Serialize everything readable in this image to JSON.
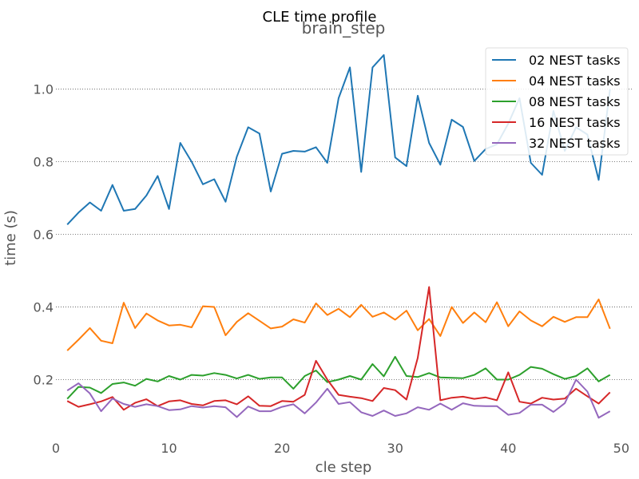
{
  "chart_data": {
    "type": "line",
    "suptitle": "CLE time profile",
    "title": "brain_step",
    "xlabel": "cle step",
    "ylabel": "time (s)",
    "xlim": [
      0,
      51
    ],
    "ylim": [
      0.045,
      1.14
    ],
    "xticks": [
      0,
      10,
      20,
      30,
      40,
      50
    ],
    "yticks": [
      0.2,
      0.4,
      0.6,
      0.8,
      1.0
    ],
    "xtick_labels": [
      "0",
      "10",
      "20",
      "30",
      "40",
      "50"
    ],
    "ytick_labels": [
      "0.2",
      "0.4",
      "0.6",
      "0.8",
      "1.0"
    ],
    "grid": "horizontal dotted",
    "legend_position": "top-right",
    "x": [
      1,
      2,
      3,
      4,
      5,
      6,
      7,
      8,
      9,
      10,
      11,
      12,
      13,
      14,
      15,
      16,
      17,
      18,
      19,
      20,
      21,
      22,
      23,
      24,
      25,
      26,
      27,
      28,
      29,
      30,
      31,
      32,
      33,
      34,
      35,
      36,
      37,
      38,
      39,
      40,
      41,
      42,
      43,
      44,
      45,
      46,
      47,
      48,
      49
    ],
    "series": [
      {
        "name": "02 NEST tasks",
        "color": "#1f77b4",
        "values": [
          0.627,
          0.66,
          0.688,
          0.665,
          0.736,
          0.665,
          0.67,
          0.707,
          0.761,
          0.67,
          0.852,
          0.8,
          0.738,
          0.752,
          0.69,
          0.814,
          0.895,
          0.878,
          0.718,
          0.822,
          0.83,
          0.828,
          0.84,
          0.797,
          0.975,
          1.06,
          0.772,
          1.06,
          1.094,
          0.812,
          0.788,
          0.982,
          0.852,
          0.792,
          0.916,
          0.896,
          0.802,
          0.835,
          0.848,
          0.905,
          0.975,
          0.797,
          0.764,
          0.94,
          0.83,
          0.895,
          0.875,
          0.75,
          1.0
        ]
      },
      {
        "name": "04 NEST tasks",
        "color": "#ff7f0e",
        "values": [
          0.28,
          0.31,
          0.342,
          0.307,
          0.3,
          0.412,
          0.342,
          0.382,
          0.363,
          0.349,
          0.351,
          0.344,
          0.402,
          0.4,
          0.322,
          0.359,
          0.383,
          0.362,
          0.341,
          0.346,
          0.366,
          0.357,
          0.41,
          0.378,
          0.395,
          0.372,
          0.406,
          0.373,
          0.385,
          0.365,
          0.39,
          0.336,
          0.367,
          0.32,
          0.4,
          0.356,
          0.385,
          0.358,
          0.413,
          0.347,
          0.388,
          0.363,
          0.347,
          0.373,
          0.359,
          0.372,
          0.372,
          0.421,
          0.34
        ]
      },
      {
        "name": "08 NEST tasks",
        "color": "#2ca02c",
        "values": [
          0.147,
          0.18,
          0.178,
          0.163,
          0.188,
          0.192,
          0.183,
          0.202,
          0.195,
          0.21,
          0.2,
          0.213,
          0.211,
          0.218,
          0.213,
          0.203,
          0.213,
          0.202,
          0.206,
          0.206,
          0.175,
          0.21,
          0.225,
          0.193,
          0.2,
          0.21,
          0.2,
          0.243,
          0.209,
          0.263,
          0.21,
          0.207,
          0.218,
          0.206,
          0.205,
          0.204,
          0.213,
          0.231,
          0.2,
          0.2,
          0.213,
          0.235,
          0.23,
          0.215,
          0.202,
          0.21,
          0.231,
          0.195,
          0.213
        ]
      },
      {
        "name": "16 NEST tasks",
        "color": "#d62728",
        "values": [
          0.141,
          0.125,
          0.132,
          0.14,
          0.152,
          0.117,
          0.136,
          0.146,
          0.127,
          0.14,
          0.143,
          0.133,
          0.129,
          0.141,
          0.143,
          0.132,
          0.154,
          0.128,
          0.127,
          0.141,
          0.139,
          0.158,
          0.252,
          0.2,
          0.158,
          0.153,
          0.149,
          0.141,
          0.177,
          0.171,
          0.145,
          0.26,
          0.455,
          0.143,
          0.15,
          0.153,
          0.147,
          0.151,
          0.143,
          0.22,
          0.139,
          0.134,
          0.15,
          0.145,
          0.148,
          0.175,
          0.154,
          0.134,
          0.165
        ]
      },
      {
        "name": "32 NEST tasks",
        "color": "#9467bd",
        "values": [
          0.17,
          0.19,
          0.162,
          0.113,
          0.148,
          0.133,
          0.125,
          0.132,
          0.127,
          0.116,
          0.118,
          0.127,
          0.123,
          0.127,
          0.124,
          0.097,
          0.126,
          0.113,
          0.113,
          0.125,
          0.132,
          0.107,
          0.137,
          0.175,
          0.133,
          0.138,
          0.11,
          0.1,
          0.115,
          0.1,
          0.107,
          0.124,
          0.117,
          0.134,
          0.117,
          0.135,
          0.128,
          0.127,
          0.127,
          0.103,
          0.108,
          0.131,
          0.131,
          0.111,
          0.135,
          0.2,
          0.167,
          0.095,
          0.113
        ]
      }
    ]
  }
}
